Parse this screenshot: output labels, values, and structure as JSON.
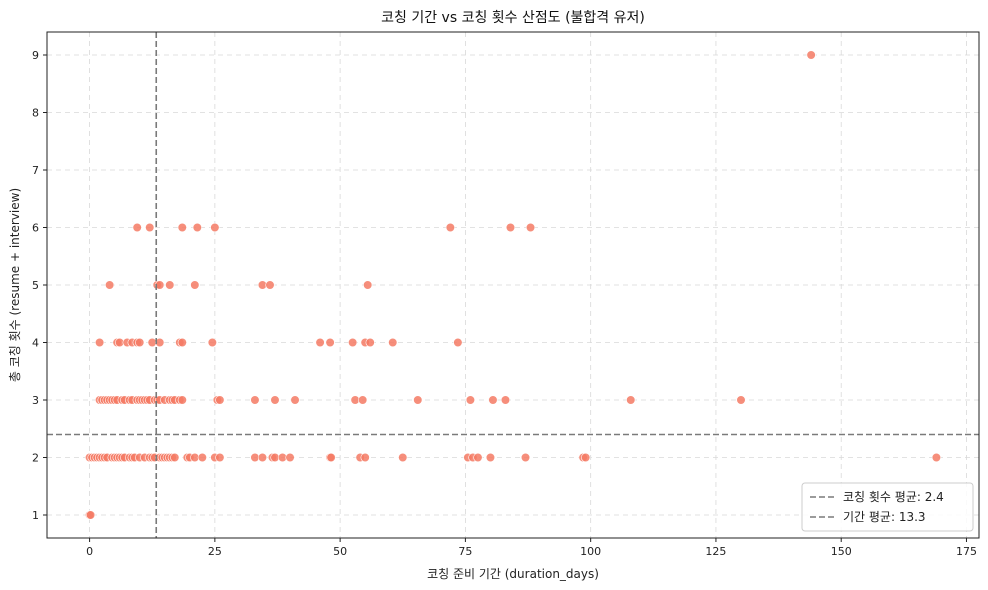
{
  "chart_data": {
    "type": "scatter",
    "title": "코칭 기간 vs 코칭 횟수 산점도 (불합격 유저)",
    "xlabel": "코칭 준비 기간 (duration_days)",
    "ylabel": "총 코칭 횟수 (resume + interview)",
    "xlim": [
      -8.5,
      177.5
    ],
    "ylim": [
      0.6,
      9.4
    ],
    "xticks": [
      0,
      25,
      50,
      75,
      100,
      125,
      150,
      175
    ],
    "yticks": [
      1,
      2,
      3,
      4,
      5,
      6,
      7,
      8,
      9
    ],
    "grid": true,
    "legend_position": "lower-right",
    "point_color": "#F47A64",
    "mean_line_color": "#7a7a7a",
    "reference_lines": [
      {
        "orientation": "horizontal",
        "value": 2.4,
        "label": "코칭 횟수 평균: 2.4"
      },
      {
        "orientation": "vertical",
        "value": 13.3,
        "label": "기간 평균: 13.3"
      }
    ],
    "series": [
      {
        "points": [
          [
            0,
            1
          ],
          [
            0.2,
            1
          ],
          [
            0,
            2
          ],
          [
            0.5,
            2
          ],
          [
            1,
            2
          ],
          [
            1.5,
            2
          ],
          [
            2,
            2
          ],
          [
            2.5,
            2
          ],
          [
            3,
            2
          ],
          [
            3.5,
            2
          ],
          [
            4.5,
            2
          ],
          [
            5,
            2
          ],
          [
            5.5,
            2
          ],
          [
            6,
            2
          ],
          [
            6.5,
            2
          ],
          [
            7,
            2
          ],
          [
            8,
            2
          ],
          [
            8.5,
            2
          ],
          [
            9,
            2
          ],
          [
            10,
            2
          ],
          [
            11,
            2
          ],
          [
            12,
            2
          ],
          [
            12.5,
            2
          ],
          [
            13,
            2
          ],
          [
            14,
            2
          ],
          [
            14.5,
            2
          ],
          [
            15,
            2
          ],
          [
            15.5,
            2
          ],
          [
            16,
            2
          ],
          [
            16.5,
            2
          ],
          [
            17,
            2
          ],
          [
            19.5,
            2
          ],
          [
            20,
            2
          ],
          [
            21,
            2
          ],
          [
            22.5,
            2
          ],
          [
            25,
            2
          ],
          [
            26,
            2
          ],
          [
            33,
            2
          ],
          [
            34.5,
            2
          ],
          [
            36.5,
            2
          ],
          [
            37,
            2
          ],
          [
            38.5,
            2
          ],
          [
            40,
            2
          ],
          [
            48,
            2
          ],
          [
            48.2,
            2
          ],
          [
            54,
            2
          ],
          [
            55,
            2
          ],
          [
            62.5,
            2
          ],
          [
            75.5,
            2
          ],
          [
            76.5,
            2
          ],
          [
            77.5,
            2
          ],
          [
            80,
            2
          ],
          [
            87,
            2
          ],
          [
            98.5,
            2
          ],
          [
            99,
            2
          ],
          [
            169,
            2
          ],
          [
            2,
            3
          ],
          [
            2.5,
            3
          ],
          [
            3,
            3
          ],
          [
            3.5,
            3
          ],
          [
            4,
            3
          ],
          [
            4.5,
            3
          ],
          [
            5,
            3
          ],
          [
            5.5,
            3
          ],
          [
            6.5,
            3
          ],
          [
            7,
            3
          ],
          [
            8,
            3
          ],
          [
            8.5,
            3
          ],
          [
            9.5,
            3
          ],
          [
            10,
            3
          ],
          [
            10.5,
            3
          ],
          [
            11,
            3
          ],
          [
            11.5,
            3
          ],
          [
            12,
            3
          ],
          [
            13,
            3
          ],
          [
            13.5,
            3
          ],
          [
            14,
            3
          ],
          [
            15,
            3
          ],
          [
            16,
            3
          ],
          [
            16.5,
            3
          ],
          [
            17,
            3
          ],
          [
            18,
            3
          ],
          [
            18.5,
            3
          ],
          [
            25.5,
            3
          ],
          [
            26,
            3
          ],
          [
            33,
            3
          ],
          [
            37,
            3
          ],
          [
            41,
            3
          ],
          [
            53,
            3
          ],
          [
            54.5,
            3
          ],
          [
            65.5,
            3
          ],
          [
            76,
            3
          ],
          [
            80.5,
            3
          ],
          [
            83,
            3
          ],
          [
            108,
            3
          ],
          [
            130,
            3
          ],
          [
            2,
            4
          ],
          [
            5.5,
            4
          ],
          [
            6,
            4
          ],
          [
            7.5,
            4
          ],
          [
            8.5,
            4
          ],
          [
            9.5,
            4
          ],
          [
            10,
            4
          ],
          [
            12.5,
            4
          ],
          [
            14,
            4
          ],
          [
            18,
            4
          ],
          [
            18.5,
            4
          ],
          [
            24.5,
            4
          ],
          [
            46,
            4
          ],
          [
            48,
            4
          ],
          [
            52.5,
            4
          ],
          [
            55,
            4
          ],
          [
            56,
            4
          ],
          [
            60.5,
            4
          ],
          [
            73.5,
            4
          ],
          [
            4,
            5
          ],
          [
            13.5,
            5
          ],
          [
            14,
            5
          ],
          [
            16,
            5
          ],
          [
            21,
            5
          ],
          [
            34.5,
            5
          ],
          [
            36,
            5
          ],
          [
            55.5,
            5
          ],
          [
            9.5,
            6
          ],
          [
            12,
            6
          ],
          [
            18.5,
            6
          ],
          [
            21.5,
            6
          ],
          [
            25,
            6
          ],
          [
            72,
            6
          ],
          [
            84,
            6
          ],
          [
            88,
            6
          ],
          [
            144,
            9
          ]
        ]
      }
    ]
  }
}
